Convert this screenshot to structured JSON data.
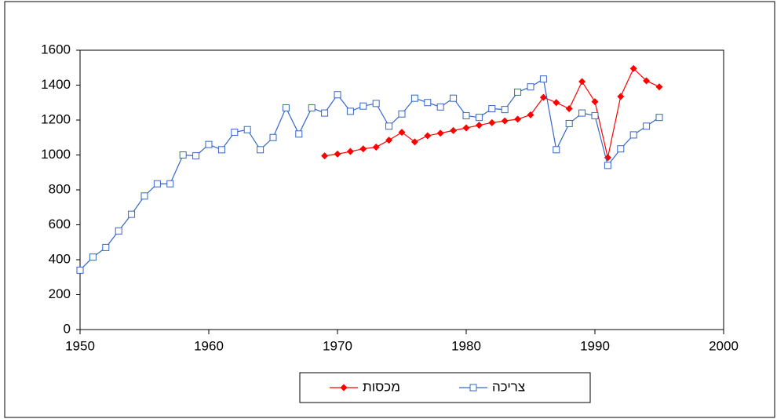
{
  "chart_data": {
    "type": "line",
    "x": [
      1950,
      1951,
      1952,
      1953,
      1954,
      1955,
      1956,
      1957,
      1958,
      1959,
      1960,
      1961,
      1962,
      1963,
      1964,
      1965,
      1966,
      1967,
      1968,
      1969,
      1970,
      1971,
      1972,
      1973,
      1974,
      1975,
      1976,
      1977,
      1978,
      1979,
      1980,
      1981,
      1982,
      1983,
      1984,
      1985,
      1986,
      1987,
      1988,
      1989,
      1990,
      1991,
      1992,
      1993,
      1994,
      1995
    ],
    "series": [
      {
        "name": "מכסות",
        "color": "#ff0000",
        "marker": "diamond",
        "values": [
          null,
          null,
          null,
          null,
          null,
          null,
          null,
          null,
          null,
          null,
          null,
          null,
          null,
          null,
          null,
          null,
          null,
          null,
          null,
          995,
          1005,
          1020,
          1035,
          1045,
          1085,
          1130,
          1075,
          1110,
          1125,
          1140,
          1155,
          1170,
          1185,
          1195,
          1205,
          1230,
          1330,
          1300,
          1265,
          1420,
          1305,
          985,
          1335,
          1495,
          1425,
          1390
        ]
      },
      {
        "name": "צריכה",
        "color": "#3366cc",
        "marker": "square",
        "values": [
          340,
          415,
          470,
          565,
          660,
          765,
          835,
          835,
          1000,
          995,
          1060,
          1030,
          1130,
          1145,
          1030,
          1100,
          1270,
          1120,
          1270,
          1240,
          1345,
          1250,
          1280,
          1295,
          1165,
          1235,
          1325,
          1300,
          1275,
          1325,
          1225,
          1215,
          1265,
          1260,
          1360,
          1390,
          1435,
          1030,
          1180,
          1240,
          1225,
          940,
          1035,
          1115,
          1165,
          1215
        ]
      }
    ],
    "xlim": [
      1950,
      2000
    ],
    "xticks": [
      1950,
      1960,
      1970,
      1980,
      1990,
      2000
    ],
    "ylim": [
      0,
      1600
    ],
    "yticks": [
      0,
      200,
      400,
      600,
      800,
      1000,
      1200,
      1400,
      1600
    ],
    "grid": false,
    "legend": "bottom"
  }
}
